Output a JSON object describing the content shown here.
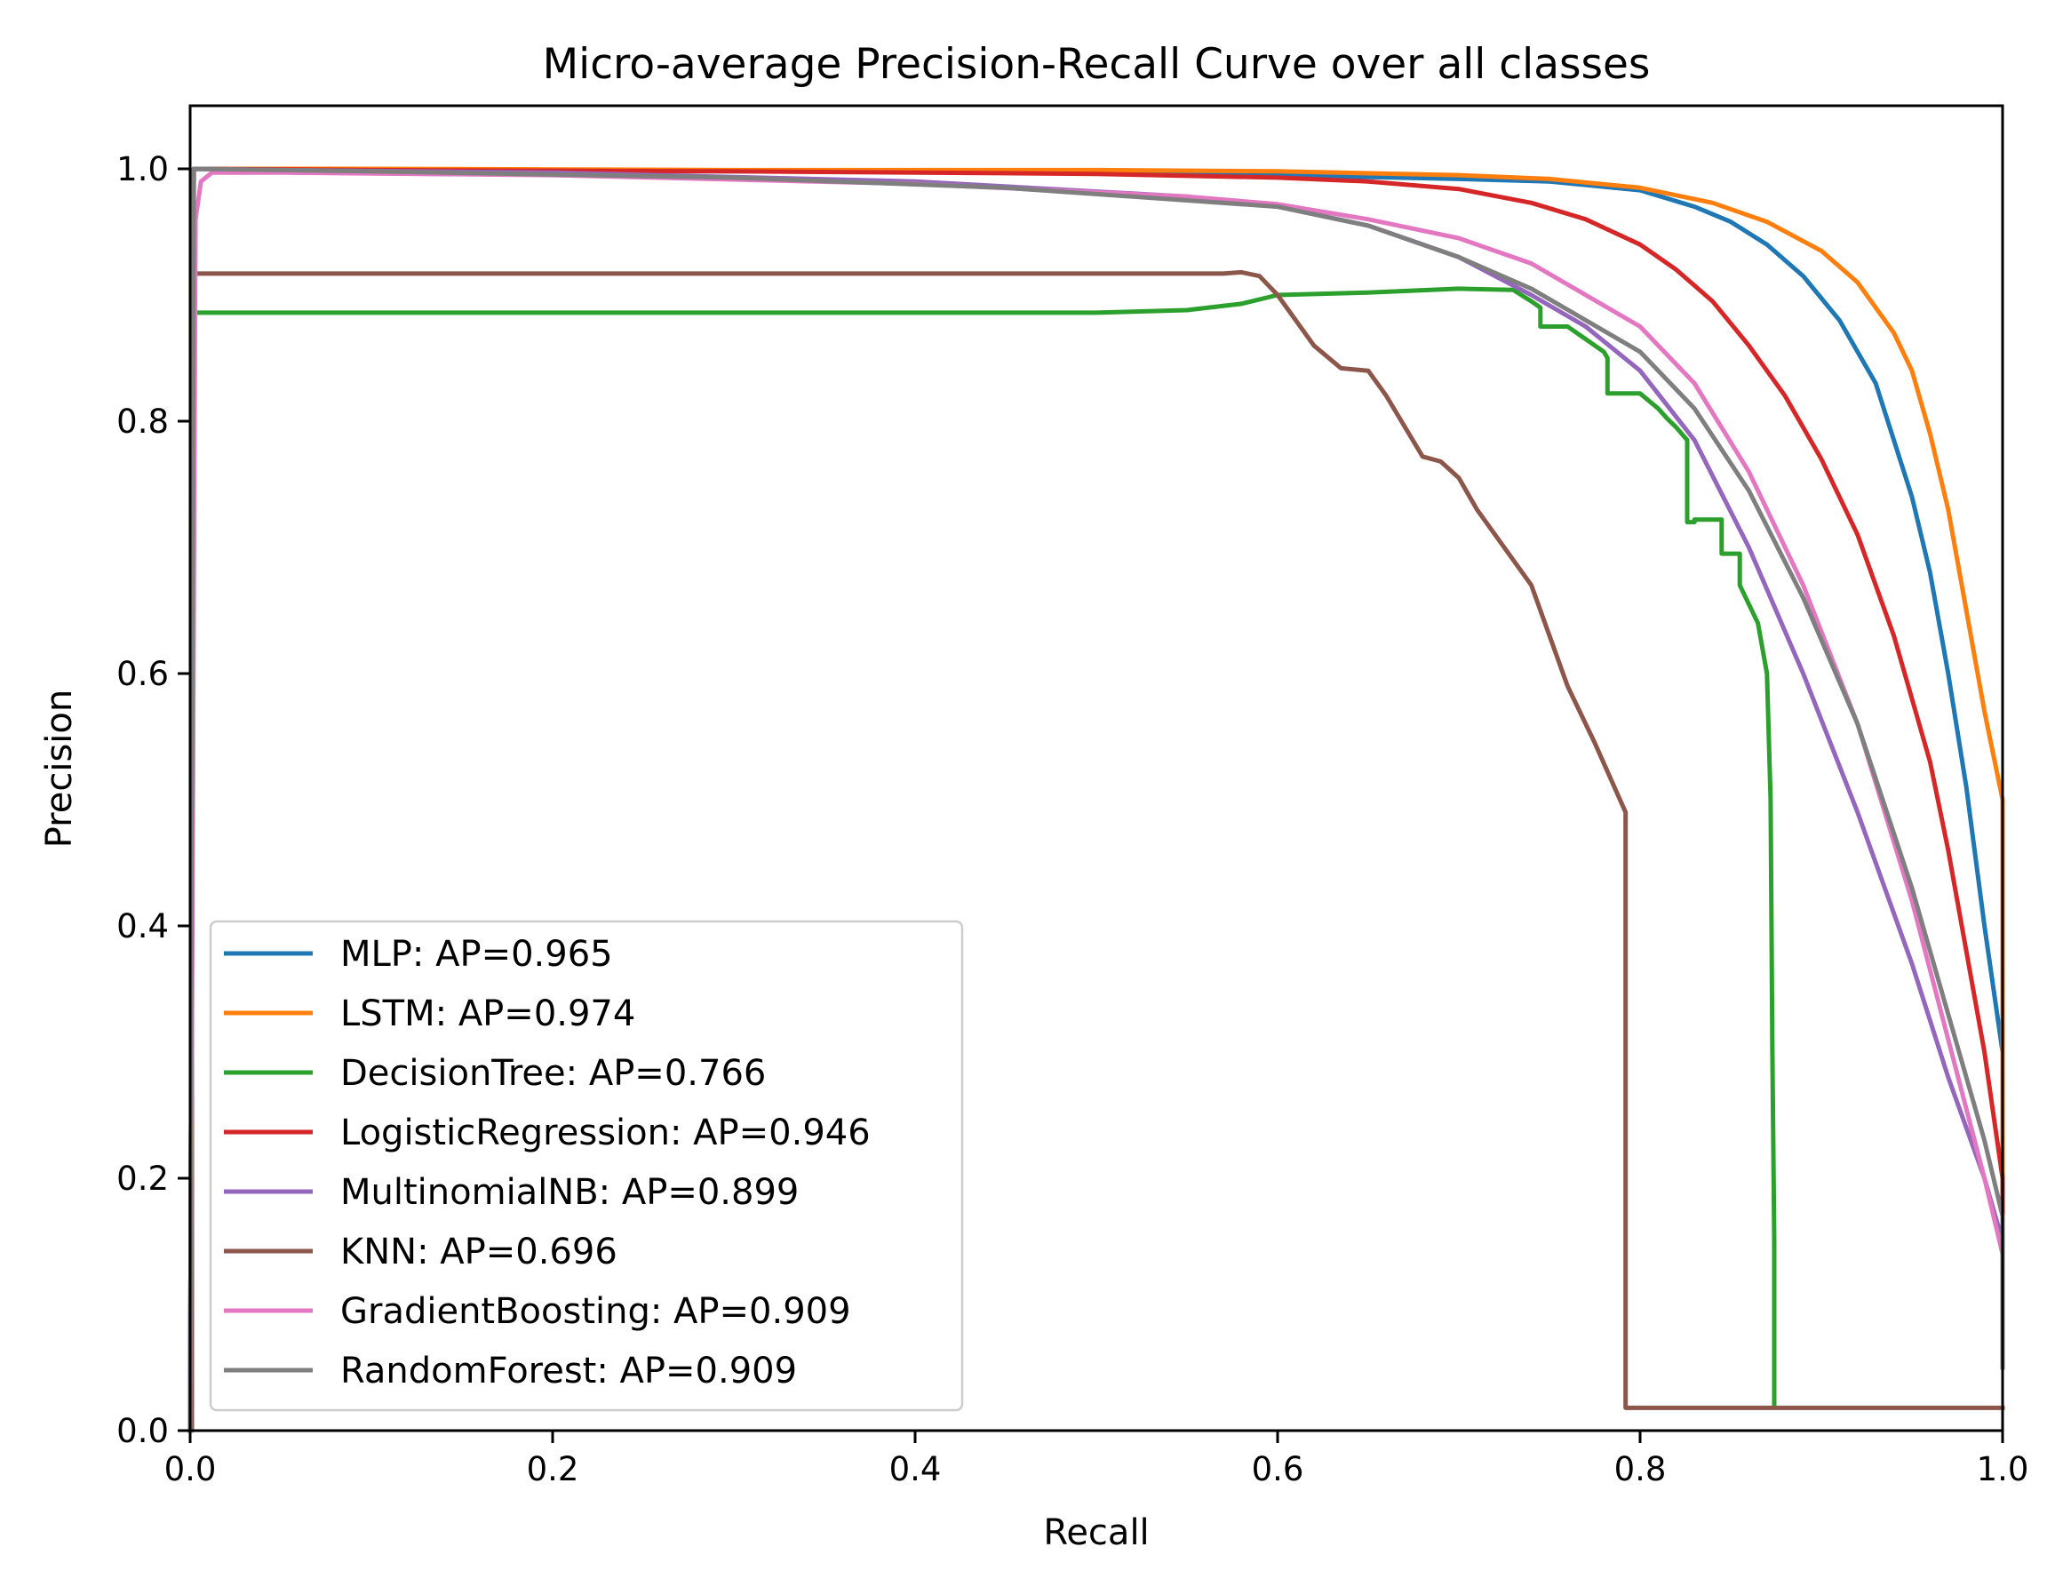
{
  "chart_data": {
    "type": "line",
    "title": "Micro-average Precision-Recall Curve over all classes",
    "xlabel": "Recall",
    "ylabel": "Precision",
    "xlim": [
      0.0,
      1.0
    ],
    "ylim": [
      0.0,
      1.05
    ],
    "xticks": [
      0.0,
      0.2,
      0.4,
      0.6,
      0.8,
      1.0
    ],
    "xtick_labels": [
      "0.0",
      "0.2",
      "0.4",
      "0.6",
      "0.8",
      "1.0"
    ],
    "yticks": [
      0.0,
      0.2,
      0.4,
      0.6,
      0.8,
      1.0
    ],
    "ytick_labels": [
      "0.0",
      "0.2",
      "0.4",
      "0.6",
      "0.8",
      "1.0"
    ],
    "grid": false,
    "legend_position": "lower-left",
    "series": [
      {
        "name": "MLP",
        "label": "MLP: AP=0.965",
        "color": "#1f77b4",
        "x": [
          0,
          0.002,
          0.1,
          0.3,
          0.5,
          0.6,
          0.7,
          0.75,
          0.8,
          0.83,
          0.85,
          0.87,
          0.89,
          0.91,
          0.93,
          0.95,
          0.96,
          0.97,
          0.98,
          0.99,
          1.0,
          1.0
        ],
        "y": [
          0.0,
          1.0,
          0.999,
          0.998,
          0.997,
          0.995,
          0.992,
          0.99,
          0.983,
          0.97,
          0.958,
          0.94,
          0.915,
          0.88,
          0.83,
          0.74,
          0.68,
          0.6,
          0.51,
          0.4,
          0.3,
          0.06
        ]
      },
      {
        "name": "LSTM",
        "label": "LSTM: AP=0.974",
        "color": "#ff7f0e",
        "x": [
          0,
          0.002,
          0.1,
          0.3,
          0.5,
          0.6,
          0.7,
          0.75,
          0.8,
          0.84,
          0.87,
          0.9,
          0.92,
          0.94,
          0.95,
          0.96,
          0.97,
          0.98,
          0.99,
          1.0,
          1.0
        ],
        "y": [
          0.0,
          1.0,
          1.0,
          0.999,
          0.999,
          0.998,
          0.995,
          0.992,
          0.985,
          0.973,
          0.958,
          0.935,
          0.91,
          0.87,
          0.84,
          0.79,
          0.73,
          0.65,
          0.57,
          0.5,
          0.06
        ]
      },
      {
        "name": "DecisionTree",
        "label": "DecisionTree: AP=0.766",
        "color": "#2ca02c",
        "x": [
          0,
          0.001,
          0.001,
          0.5,
          0.55,
          0.58,
          0.6,
          0.65,
          0.7,
          0.73,
          0.74,
          0.745,
          0.745,
          0.76,
          0.77,
          0.78,
          0.782,
          0.782,
          0.8,
          0.81,
          0.815,
          0.82,
          0.826,
          0.826,
          0.83,
          0.83,
          0.845,
          0.845,
          0.855,
          0.855,
          0.86,
          0.865,
          0.87,
          0.872,
          0.873,
          0.874,
          0.874
        ],
        "y": [
          0.0,
          0.0,
          0.886,
          0.886,
          0.888,
          0.893,
          0.9,
          0.902,
          0.905,
          0.904,
          0.895,
          0.89,
          0.875,
          0.875,
          0.865,
          0.855,
          0.85,
          0.822,
          0.822,
          0.81,
          0.802,
          0.795,
          0.785,
          0.72,
          0.72,
          0.722,
          0.722,
          0.695,
          0.695,
          0.67,
          0.655,
          0.64,
          0.6,
          0.5,
          0.3,
          0.15,
          0.02
        ]
      },
      {
        "name": "LogisticRegression",
        "label": "LogisticRegression: AP=0.946",
        "color": "#d62728",
        "x": [
          0,
          0.002,
          0.1,
          0.3,
          0.5,
          0.6,
          0.65,
          0.7,
          0.74,
          0.77,
          0.8,
          0.82,
          0.84,
          0.86,
          0.88,
          0.9,
          0.92,
          0.94,
          0.96,
          0.97,
          0.98,
          0.99,
          1.0,
          1.0
        ],
        "y": [
          0.0,
          1.0,
          0.999,
          0.998,
          0.996,
          0.993,
          0.99,
          0.984,
          0.973,
          0.96,
          0.94,
          0.92,
          0.895,
          0.86,
          0.82,
          0.77,
          0.71,
          0.63,
          0.53,
          0.46,
          0.38,
          0.3,
          0.2,
          0.05
        ]
      },
      {
        "name": "MultinomialNB",
        "label": "MultinomialNB: AP=0.899",
        "color": "#9467bd",
        "x": [
          0,
          0.002,
          0.05,
          0.2,
          0.4,
          0.55,
          0.6,
          0.65,
          0.7,
          0.74,
          0.77,
          0.8,
          0.83,
          0.86,
          0.89,
          0.92,
          0.95,
          0.97,
          0.99,
          1.0,
          1.0
        ],
        "y": [
          0.0,
          1.0,
          0.999,
          0.997,
          0.99,
          0.978,
          0.97,
          0.955,
          0.93,
          0.9,
          0.875,
          0.84,
          0.785,
          0.7,
          0.6,
          0.49,
          0.37,
          0.28,
          0.2,
          0.15,
          0.05
        ]
      },
      {
        "name": "KNN",
        "label": "KNN: AP=0.696",
        "color": "#8c564b",
        "x": [
          0,
          0.001,
          0.001,
          0.57,
          0.58,
          0.59,
          0.6,
          0.62,
          0.635,
          0.65,
          0.66,
          0.68,
          0.69,
          0.7,
          0.71,
          0.73,
          0.74,
          0.75,
          0.76,
          0.775,
          0.792,
          0.792,
          0.8,
          1.0
        ],
        "y": [
          0.0,
          0.0,
          0.917,
          0.917,
          0.918,
          0.915,
          0.9,
          0.86,
          0.842,
          0.84,
          0.82,
          0.772,
          0.768,
          0.755,
          0.73,
          0.69,
          0.67,
          0.63,
          0.59,
          0.545,
          0.49,
          0.018,
          0.018,
          0.018
        ]
      },
      {
        "name": "GradientBoosting",
        "label": "GradientBoosting: AP=0.909",
        "color": "#e377c2",
        "x": [
          0,
          0.003,
          0.006,
          0.012,
          0.05,
          0.2,
          0.4,
          0.55,
          0.6,
          0.65,
          0.7,
          0.74,
          0.77,
          0.8,
          0.83,
          0.86,
          0.89,
          0.92,
          0.95,
          0.97,
          0.99,
          1.0,
          1.0
        ],
        "y": [
          0.0,
          0.96,
          0.99,
          0.997,
          0.997,
          0.995,
          0.988,
          0.978,
          0.972,
          0.96,
          0.945,
          0.925,
          0.9,
          0.875,
          0.83,
          0.76,
          0.67,
          0.56,
          0.42,
          0.31,
          0.2,
          0.14,
          0.05
        ]
      },
      {
        "name": "RandomForest",
        "label": "RandomForest: AP=0.909",
        "color": "#7f7f7f",
        "x": [
          0,
          0.002,
          0.1,
          0.3,
          0.45,
          0.55,
          0.6,
          0.65,
          0.7,
          0.74,
          0.77,
          0.8,
          0.83,
          0.86,
          0.89,
          0.92,
          0.95,
          0.97,
          0.99,
          1.0,
          1.0
        ],
        "y": [
          0.0,
          1.0,
          0.998,
          0.993,
          0.985,
          0.975,
          0.97,
          0.955,
          0.93,
          0.905,
          0.88,
          0.855,
          0.81,
          0.745,
          0.66,
          0.56,
          0.43,
          0.33,
          0.23,
          0.17,
          0.05
        ]
      }
    ]
  }
}
